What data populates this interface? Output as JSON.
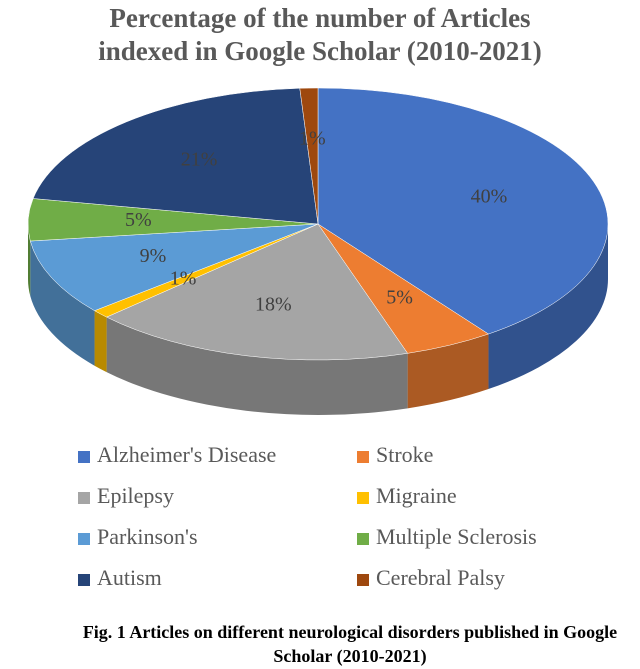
{
  "chart_data": {
    "type": "pie3d",
    "title": "Percentage of the number of Articles indexed in Google Scholar (2010-2021)",
    "categories": [
      "Alzheimer's Disease",
      "Stroke",
      "Epilepsy",
      "Migraine",
      "Parkinson's",
      "Multiple Sclerosis",
      "Autism",
      "Cerebral Palsy"
    ],
    "values": [
      40,
      5,
      18,
      1,
      9,
      5,
      21,
      1
    ],
    "value_labels": [
      "40%",
      "5%",
      "18%",
      "1%",
      "9%",
      "5%",
      "21%",
      "1%"
    ],
    "colors": [
      "#4472c4",
      "#ed7d31",
      "#a5a5a5",
      "#ffc000",
      "#5b9bd5",
      "#70ad47",
      "#264478",
      "#9e480e"
    ],
    "legend": "bottom",
    "caption": "Fig. 1 Articles on different neurological disorders published in Google Scholar (2010-2021)"
  }
}
